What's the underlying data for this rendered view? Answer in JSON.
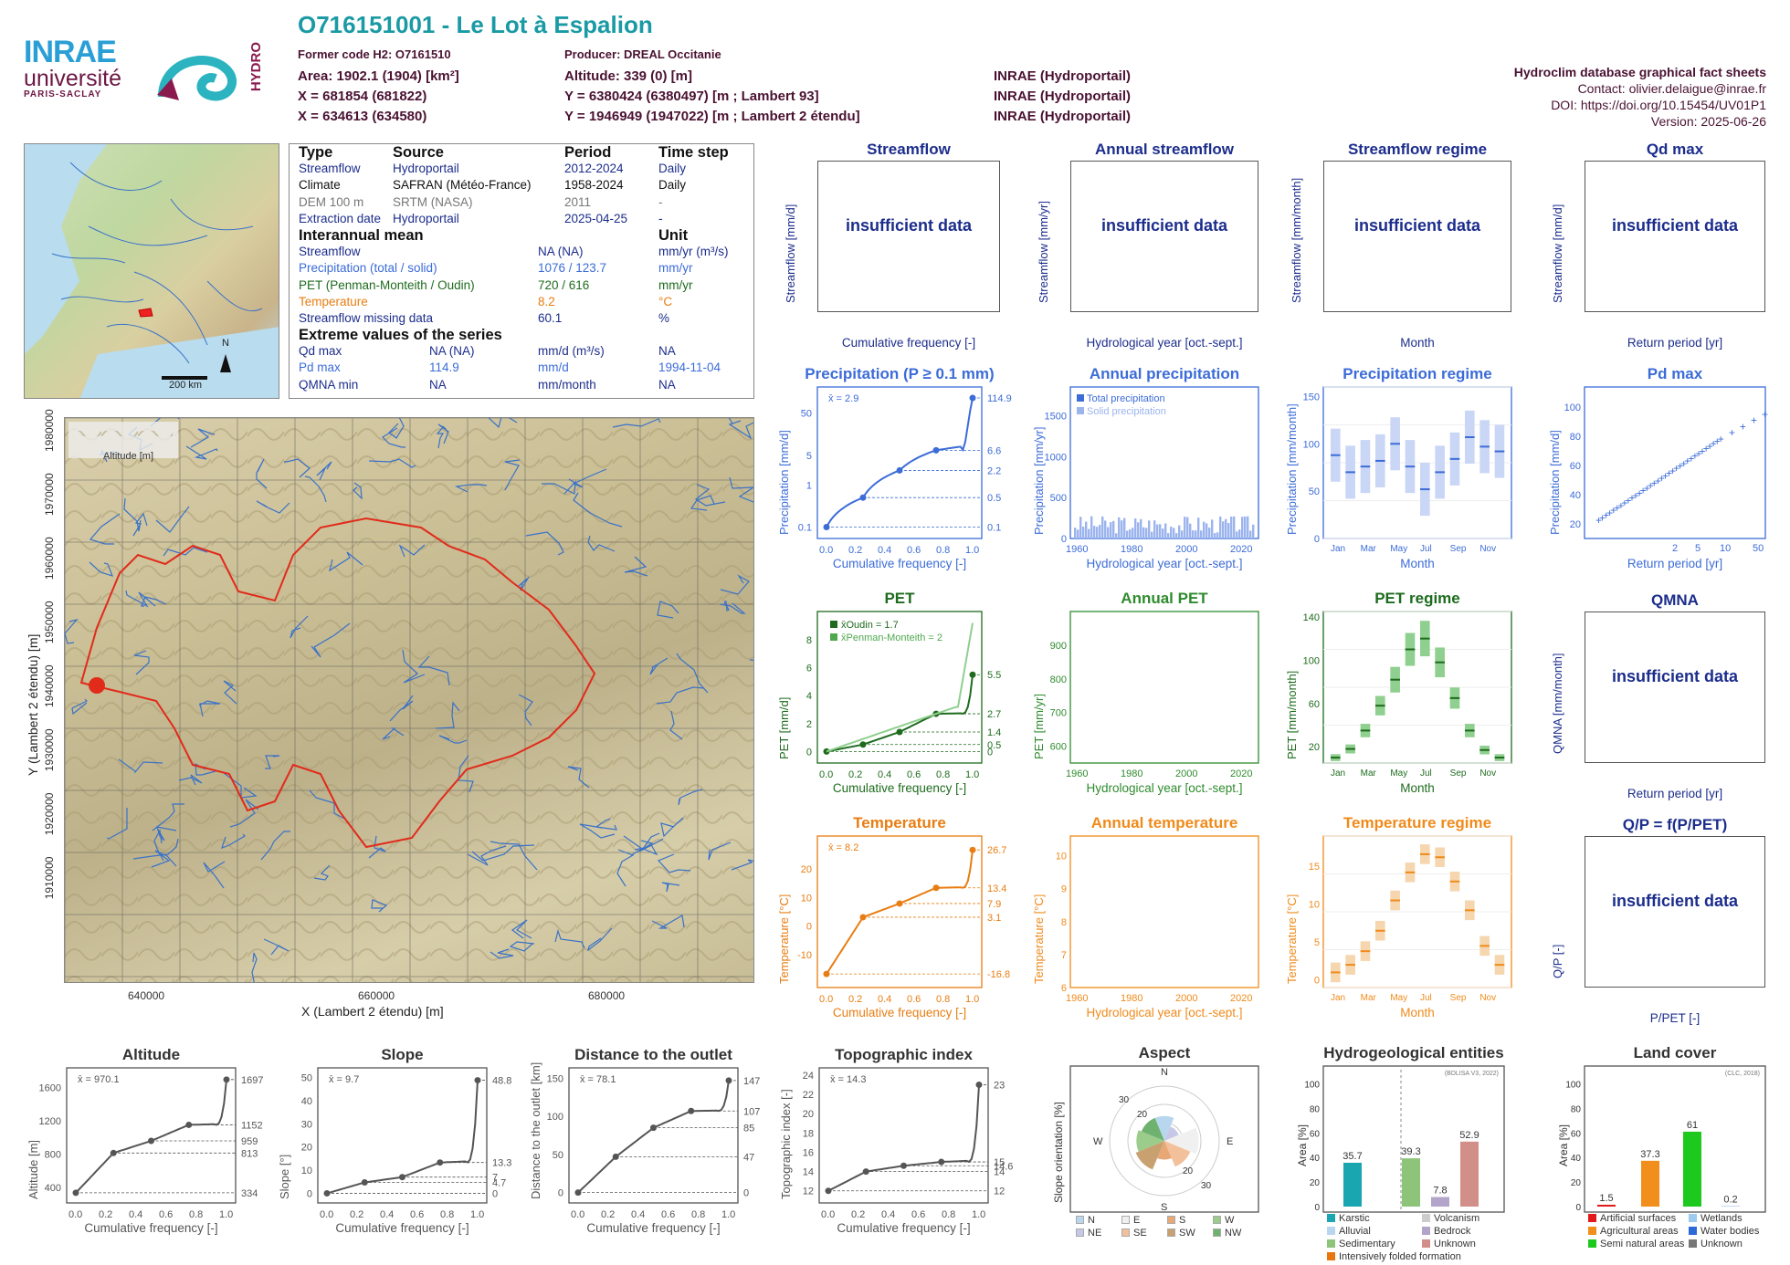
{
  "header": {
    "title": "O716151001 - Le Lot à Espalion",
    "former_code": "Former code H2: O7161510",
    "producer": "Producer: DREAL Occitanie",
    "area": "Area: 1902.1 (1904) [km²]",
    "altitude": "Altitude: 339 (0) [m]",
    "x_lambert93": "X = 681854 (681822)",
    "y_lambert93": "Y = 6380424 (6380497) [m ; Lambert 93]",
    "x_lambert2": "X = 634613 (634580)",
    "y_lambert2": "Y = 1946949 (1947022) [m ; Lambert 2 étendu]",
    "source1": "INRAE (Hydroportail)",
    "source2": "INRAE (Hydroportail)",
    "source3": "INRAE (Hydroportail)"
  },
  "logos": {
    "inrae": "INRAE",
    "universite": "université",
    "paris_saclay": "PARIS-SACLAY",
    "hydro": "HYDRO"
  },
  "meta": {
    "db": "Hydroclim database graphical fact sheets",
    "contact": "Contact: olivier.delaigue@inrae.fr",
    "doi": "DOI: https://doi.org/10.15454/UV01P1",
    "version": "Version: 2025-06-26"
  },
  "info": {
    "h_type": "Type",
    "h_source": "Source",
    "h_period": "Period",
    "h_step": "Time step",
    "rows": [
      {
        "type": "Streamflow",
        "source": "Hydroportail",
        "period": "2012-2024",
        "step": "Daily",
        "color": "#1c2d8c"
      },
      {
        "type": "Climate",
        "source": "SAFRAN (Météo-France)",
        "period": "1958-2024",
        "step": "Daily",
        "color": "#111"
      },
      {
        "type": "DEM 100 m",
        "source": "SRTM (NASA)",
        "period": "2011",
        "step": "-",
        "color": "#777"
      },
      {
        "type": "Extraction date",
        "source": "Hydroportail",
        "period": "2025-04-25",
        "step": "-",
        "color": "#1c2d8c"
      }
    ],
    "h_mean": "Interannual mean",
    "h_unit": "Unit",
    "means": [
      {
        "label": "Streamflow",
        "value": "NA (NA)",
        "unit": "mm/yr (m³/s)",
        "color": "#1c2d8c"
      },
      {
        "label": "Precipitation (total / solid)",
        "value": "1076 / 123.7",
        "unit": "mm/yr",
        "color": "#3c6cd8"
      },
      {
        "label": "PET (Penman-Monteith / Oudin)",
        "value": "720 / 616",
        "unit": "mm/yr",
        "color": "#1e6b1e"
      },
      {
        "label": "Temperature",
        "value": "8.2",
        "unit": "°C",
        "color": "#e87d12"
      },
      {
        "label": "Streamflow missing data",
        "value": "60.1",
        "unit": "%",
        "color": "#1c2d8c"
      }
    ],
    "h_extreme": "Extreme values of the series",
    "extremes": [
      {
        "label": "Qd max",
        "value": "NA (NA)",
        "unit": "mm/d (m³/s)",
        "date": "NA",
        "color": "#1c2d8c"
      },
      {
        "label": "Pd max",
        "value": "114.9",
        "unit": "mm/d",
        "date": "1994-11-04",
        "color": "#3c6cd8"
      },
      {
        "label": "QMNA min",
        "value": "NA",
        "unit": "mm/month",
        "date": "NA",
        "color": "#1c2d8c"
      }
    ]
  },
  "panels": {
    "streamflow": {
      "title": "Streamflow",
      "ylab": "Streamflow [mm/d]",
      "xlab": "Cumulative frequency [-]",
      "msg": "insufficient data"
    },
    "annual_streamflow": {
      "title": "Annual streamflow",
      "ylab": "Streamflow [mm/yr]",
      "xlab": "Hydrological year [oct.-sept.]",
      "msg": "insufficient data"
    },
    "streamflow_regime": {
      "title": "Streamflow regime",
      "ylab": "Streamflow [mm/month]",
      "xlab": "Month",
      "msg": "insufficient data"
    },
    "qd_max": {
      "title": "Qd max",
      "ylab": "Streamflow [mm/d]",
      "xlab": "Return period [yr]",
      "msg": "insufficient data"
    },
    "qmna": {
      "title": "QMNA",
      "ylab": "QMNA [mm/month]",
      "xlab": "Return period [yr]",
      "msg": "insufficient data"
    },
    "qp": {
      "title": "Q/P = f(P/PET)",
      "ylab": "Q/P [-]",
      "xlab": "P/PET [-]",
      "msg": "insufficient data"
    },
    "precip": {
      "title": "Precipitation (P ≥ 0.1 mm)",
      "ylab": "Precipitation [mm/d]",
      "xlab": "Cumulative frequency [-]",
      "mean": "x̄ = 2.9"
    },
    "annual_precip": {
      "title": "Annual precipitation",
      "ylab": "Precipitation [mm/yr]",
      "xlab": "Hydrological year [oct.-sept.]",
      "leg1": "Total precipitation",
      "leg2": "Solid precipitation"
    },
    "precip_regime": {
      "title": "Precipitation regime",
      "ylab": "Precipitation [mm/month]",
      "xlab": "Month"
    },
    "pd_max": {
      "title": "Pd max",
      "ylab": "Precipitation [mm/d]",
      "xlab": "Return period [yr]"
    },
    "pet": {
      "title": "PET",
      "ylab": "PET [mm/d]",
      "xlab": "Cumulative frequency [-]",
      "leg1": "x̄Oudin = 1.7",
      "leg2": "x̄Penman-Monteith = 2"
    },
    "annual_pet": {
      "title": "Annual PET",
      "ylab": "PET [mm/yr]",
      "xlab": "Hydrological year [oct.-sept.]"
    },
    "pet_regime": {
      "title": "PET regime",
      "ylab": "PET [mm/month]",
      "xlab": "Month"
    },
    "temp": {
      "title": "Temperature",
      "ylab": "Temperature [°C]",
      "xlab": "Cumulative frequency [-]",
      "mean": "x̄ = 8.2"
    },
    "annual_temp": {
      "title": "Annual temperature",
      "ylab": "Temperature [°C]",
      "xlab": "Hydrological year [oct.-sept.]"
    },
    "temp_regime": {
      "title": "Temperature regime",
      "ylab": "Temperature [°C]",
      "xlab": "Month"
    },
    "altitude": {
      "title": "Altitude",
      "ylab": "Altitude [m]",
      "xlab": "Cumulative frequency [-]",
      "mean": "x̄ = 970.1"
    },
    "slope": {
      "title": "Slope",
      "ylab": "Slope [°]",
      "xlab": "Cumulative frequency [-]",
      "mean": "x̄ = 9.7"
    },
    "distance": {
      "title": "Distance to the outlet",
      "ylab": "Distance to the outlet [km]",
      "xlab": "Cumulative frequency [-]",
      "mean": "x̄ = 78.1"
    },
    "topo": {
      "title": "Topographic index",
      "ylab": "Topographic index [-]",
      "xlab": "Cumulative frequency [-]",
      "mean": "x̄ = 14.3"
    },
    "aspect": {
      "title": "Aspect",
      "ylab": "Slope orientation [%]",
      "legend": [
        "N",
        "E",
        "S",
        "W",
        "NE",
        "SE",
        "SW",
        "NW"
      ]
    },
    "hydrogeo": {
      "title": "Hydrogeological entities",
      "ylab": "Area [%]",
      "note": "(BDLISA V3, 2022)",
      "legend": [
        "Karstic",
        "Volcanism",
        "Alluvial",
        "Bedrock",
        "Sedimentary",
        "Unknown",
        "Intensively folded formation"
      ]
    },
    "landcover": {
      "title": "Land cover",
      "ylab": "Area [%]",
      "note": "(CLC, 2018)",
      "legend": [
        "Artificial surfaces",
        "Wetlands",
        "Agricultural areas",
        "Water bodies",
        "Semi natural areas",
        "Unknown"
      ]
    }
  },
  "map": {
    "xlab": "X (Lambert 2 étendu) [m]",
    "ylab": "Y (Lambert 2 étendu) [m]",
    "scale": "200 km",
    "north": "N",
    "altitude_legend": "Altitude [m]"
  },
  "chart_data": [
    {
      "type": "line",
      "title": "Precipitation (P ≥ 0.1 mm)",
      "x": [
        0,
        0.25,
        0.5,
        0.75,
        1
      ],
      "quantiles": [
        0.1,
        0.5,
        2.2,
        6.6,
        114.9
      ],
      "ylabel": "Precipitation [mm/d]",
      "yscale": "log"
    },
    {
      "type": "bar",
      "title": "Annual precipitation",
      "x_range": [
        1959,
        2024
      ],
      "ylim": [
        0,
        1800
      ],
      "note": "total ~ 850-1400 mm/yr, solid ~ 50-300 mm/yr"
    },
    {
      "type": "box",
      "title": "Precipitation regime",
      "categories": [
        "Jan",
        "Feb",
        "Mar",
        "Apr",
        "May",
        "Jun",
        "Jul",
        "Aug",
        "Sep",
        "Oct",
        "Nov",
        "Dec"
      ],
      "medians": [
        88,
        70,
        76,
        82,
        100,
        76,
        52,
        70,
        84,
        107,
        97,
        92
      ]
    },
    {
      "type": "scatter",
      "title": "Pd max",
      "xlabel": "Return period [yr]",
      "ylim": [
        20,
        130
      ]
    },
    {
      "type": "line",
      "title": "PET",
      "quantiles_oudin": [
        0,
        0.5,
        1.4,
        2.7,
        5.5
      ],
      "x": [
        0,
        0.25,
        0.5,
        0.75,
        1
      ]
    },
    {
      "type": "bar",
      "title": "Annual PET",
      "x_range": [
        1959,
        2024
      ],
      "ylim": [
        550,
        1000
      ]
    },
    {
      "type": "box",
      "title": "PET regime",
      "categories": [
        "Jan",
        "Feb",
        "Mar",
        "Apr",
        "May",
        "Jun",
        "Jul",
        "Aug",
        "Sep",
        "Oct",
        "Nov",
        "Dec"
      ],
      "medians": [
        10,
        18,
        35,
        58,
        82,
        110,
        120,
        98,
        65,
        35,
        17,
        10
      ]
    },
    {
      "type": "line",
      "title": "Temperature",
      "quantiles": [
        -16.8,
        3.1,
        7.9,
        13.4,
        26.7
      ],
      "x": [
        0,
        0.25,
        0.5,
        0.75,
        1
      ]
    },
    {
      "type": "bar",
      "title": "Annual temperature",
      "x_range": [
        1959,
        2024
      ],
      "ylim": [
        6,
        10.5
      ]
    },
    {
      "type": "box",
      "title": "Temperature regime",
      "categories": [
        "Jan",
        "Feb",
        "Mar",
        "Apr",
        "May",
        "Jun",
        "Jul",
        "Aug",
        "Sep",
        "Oct",
        "Nov",
        "Dec"
      ],
      "medians": [
        1,
        2,
        3.8,
        6.5,
        10.5,
        14.2,
        16.6,
        16.2,
        13,
        9.2,
        4.5,
        2
      ]
    },
    {
      "type": "line",
      "title": "Altitude",
      "quantiles": [
        334,
        813,
        959,
        1152,
        1697
      ],
      "x": [
        0,
        0.25,
        0.5,
        0.75,
        1
      ]
    },
    {
      "type": "line",
      "title": "Slope",
      "quantiles": [
        0,
        4.7,
        7,
        13.3,
        48.8
      ],
      "x": [
        0,
        0.25,
        0.5,
        0.75,
        1
      ]
    },
    {
      "type": "line",
      "title": "Distance to the outlet",
      "quantiles": [
        0,
        47,
        85,
        107,
        147
      ],
      "x": [
        0,
        0.25,
        0.5,
        0.75,
        1
      ]
    },
    {
      "type": "line",
      "title": "Topographic index",
      "quantiles": [
        12,
        14,
        14.6,
        15,
        23
      ],
      "x": [
        0,
        0.25,
        0.5,
        0.75,
        1
      ]
    },
    {
      "type": "bar",
      "title": "Hydrogeological entities",
      "categories": [
        "Karstic",
        "Alluvial",
        "Sedimentary",
        "Volcanism",
        "Bedrock",
        "Unknown"
      ],
      "values": [
        35.7,
        0,
        39.3,
        0,
        7.8,
        52.9
      ]
    },
    {
      "type": "bar",
      "title": "Land cover",
      "categories": [
        "Artificial surfaces",
        "Agricultural areas",
        "Semi natural areas",
        "Wetlands",
        "Water bodies",
        "Unknown"
      ],
      "values": [
        1.5,
        37.3,
        61,
        0,
        0.2,
        0
      ]
    }
  ]
}
